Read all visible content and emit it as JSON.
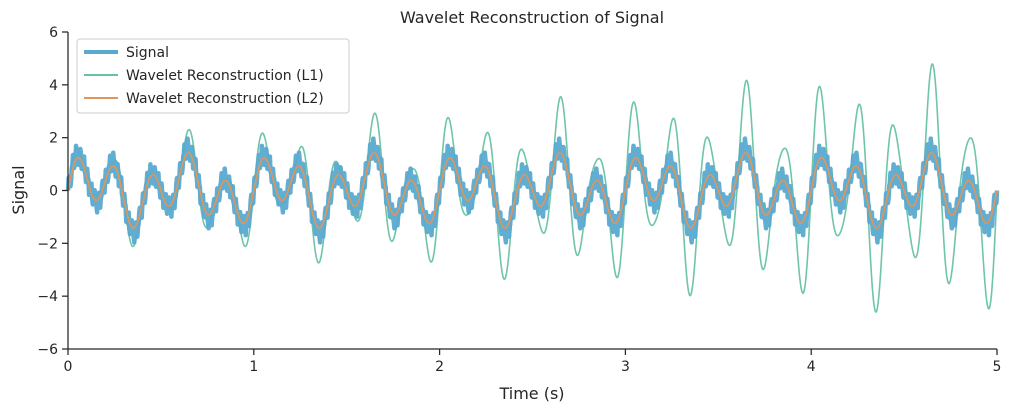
{
  "chart_data": {
    "type": "line",
    "title": "Wavelet Reconstruction of Signal",
    "xlabel": "Time (s)",
    "ylabel": "Signal",
    "xlim": [
      0,
      5
    ],
    "ylim": [
      -6,
      6
    ],
    "x_ticks": [
      "0",
      "1",
      "2",
      "3",
      "4",
      "5"
    ],
    "y_ticks": [
      "−6",
      "−4",
      "−2",
      "0",
      "2",
      "4",
      "6"
    ],
    "grid": false,
    "legend_position": "top-left",
    "samples": 1500,
    "series": [
      {
        "name": "Signal",
        "color": "#5aa9d0",
        "components": [
          {
            "amplitude": 1.0,
            "frequency_hz": 5
          },
          {
            "amplitude": 0.6,
            "frequency_hz": 2
          },
          {
            "amplitude": 0.3,
            "frequency_hz": 50
          },
          {
            "amplitude": 0.15,
            "frequency_hz": 120
          }
        ]
      },
      {
        "name": "Wavelet Reconstruction (L1)",
        "color": "#66c2a5",
        "components": [
          {
            "amplitude": 1.0,
            "frequency_hz": 5,
            "growth_per_s": 0.5
          },
          {
            "amplitude": 0.7,
            "frequency_hz": 2
          },
          {
            "amplitude": 0.25,
            "frequency_hz": 8,
            "growth_per_s": 0.5
          }
        ]
      },
      {
        "name": "Wavelet Reconstruction (L2)",
        "color": "#e0965a",
        "components": [
          {
            "amplitude": 0.9,
            "frequency_hz": 5
          },
          {
            "amplitude": 0.55,
            "frequency_hz": 2
          }
        ]
      }
    ]
  }
}
